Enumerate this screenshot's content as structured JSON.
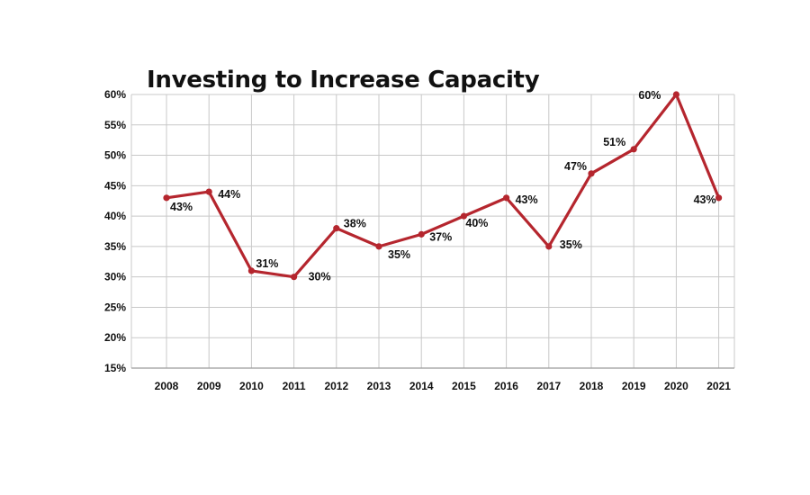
{
  "chart_data": {
    "type": "line",
    "title": "Investing to Increase Capacity",
    "xlabel": "",
    "ylabel": "",
    "categories": [
      "2008",
      "2009",
      "2010",
      "2011",
      "2012",
      "2013",
      "2014",
      "2015",
      "2016",
      "2017",
      "2018",
      "2019",
      "2020",
      "2021"
    ],
    "series": [
      {
        "values": [
          43,
          44,
          31,
          30,
          38,
          35,
          37,
          40,
          43,
          35,
          47,
          51,
          60,
          43
        ]
      }
    ],
    "data_labels": [
      "43%",
      "44%",
      "31%",
      "30%",
      "38%",
      "35%",
      "37%",
      "40%",
      "43%",
      "35%",
      "47%",
      "51%",
      "60%",
      "43%"
    ],
    "ylim": [
      15,
      60
    ],
    "y_ticks": [
      15,
      20,
      25,
      30,
      35,
      40,
      45,
      50,
      55,
      60
    ],
    "y_tick_labels": [
      "15%",
      "20%",
      "25%",
      "30%",
      "35%",
      "40%",
      "45%",
      "50%",
      "55%",
      "60%"
    ],
    "grid": true,
    "legend": "none",
    "line_color": "#b5262e",
    "grid_color": "#c8c8c8"
  }
}
